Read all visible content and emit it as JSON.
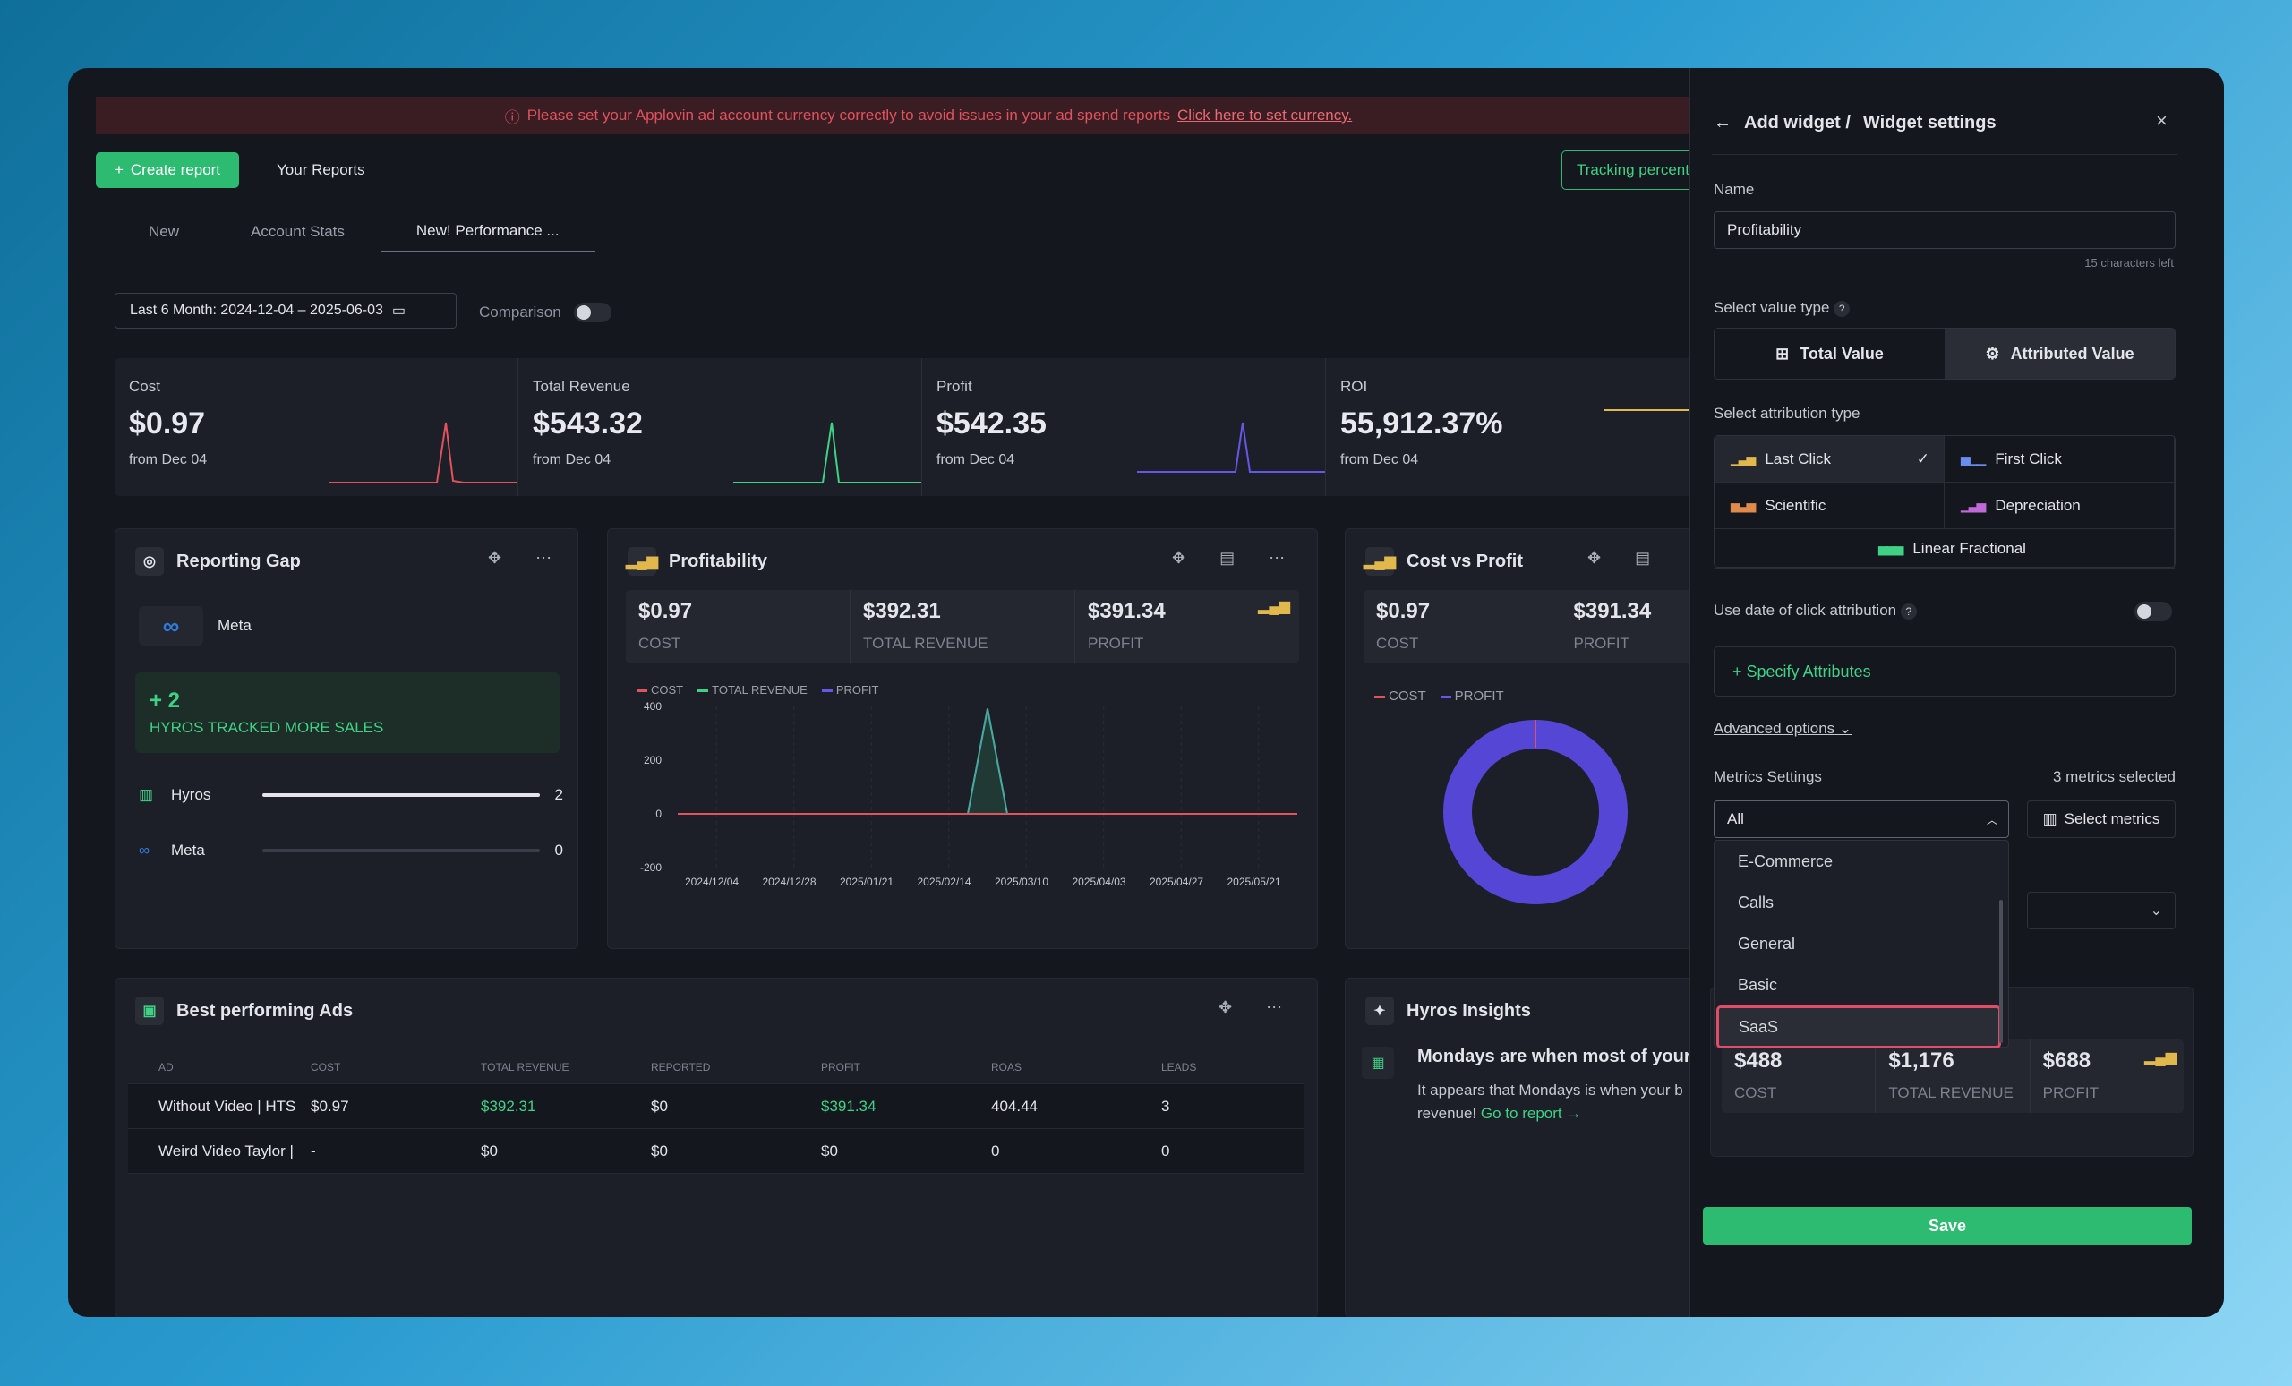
{
  "banner": {
    "message": "Please set your Applovin ad account currency correctly to avoid issues in your ad spend reports",
    "link": "Click here to set currency."
  },
  "toolbar": {
    "create": "Create report",
    "reports": "Your Reports",
    "tracking": "Tracking percentage"
  },
  "tabs": [
    "New",
    "Account Stats",
    "New! Performance ..."
  ],
  "date_range": "Last 6 Month: 2024-12-04 – 2025-06-03",
  "comparison": "Comparison",
  "stats": [
    {
      "label": "Cost",
      "value": "$0.97",
      "from": "from Dec 04",
      "color": "#e0525c"
    },
    {
      "label": "Total Revenue",
      "value": "$543.32",
      "from": "from Dec 04",
      "color": "#3fd285"
    },
    {
      "label": "Profit",
      "value": "$542.35",
      "from": "from Dec 04",
      "color": "#6557e8"
    },
    {
      "label": "ROI",
      "value": "55,912.37%",
      "from": "from Dec 04",
      "color": "#e0b84c"
    }
  ],
  "gap": {
    "title": "Reporting Gap",
    "platform": "Meta",
    "delta": "+ 2",
    "delta_text": "HYROS TRACKED MORE SALES",
    "rows": [
      {
        "name": "Hyros",
        "value": "2",
        "fill": 1.0
      },
      {
        "name": "Meta",
        "value": "0",
        "fill": 0.0
      }
    ]
  },
  "profit": {
    "title": "Profitability",
    "metrics": [
      {
        "v": "$0.97",
        "l": "COST"
      },
      {
        "v": "$392.31",
        "l": "TOTAL REVENUE"
      },
      {
        "v": "$391.34",
        "l": "PROFIT"
      }
    ],
    "legend": [
      "COST",
      "TOTAL REVENUE",
      "PROFIT"
    ]
  },
  "chart_data": {
    "type": "line",
    "x": [
      "2024/12/04",
      "2024/12/28",
      "2025/01/21",
      "2025/02/14",
      "2025/03/10",
      "2025/04/03",
      "2025/04/27",
      "2025/05/21"
    ],
    "yticks": [
      "400",
      "200",
      "0",
      "-200"
    ],
    "ylim": [
      -200,
      400
    ],
    "series": [
      {
        "name": "COST",
        "peak": 0
      },
      {
        "name": "TOTAL REVENUE",
        "peak": 392
      },
      {
        "name": "PROFIT",
        "peak": 391
      }
    ]
  },
  "cvp": {
    "title": "Cost vs Profit",
    "metrics": [
      {
        "v": "$0.97",
        "l": "COST"
      },
      {
        "v": "$391.34",
        "l": "PROFIT"
      }
    ],
    "legend": [
      "COST",
      "PROFIT"
    ]
  },
  "ads": {
    "title": "Best performing Ads",
    "cols": [
      "AD",
      "COST",
      "TOTAL REVENUE",
      "REPORTED",
      "PROFIT",
      "ROAS",
      "LEADS"
    ],
    "rows": [
      [
        "Without Video | HTS",
        "$0.97",
        "$392.31",
        "$0",
        "$391.34",
        "404.44",
        "3"
      ],
      [
        "Weird Video Taylor |",
        "-",
        "$0",
        "$0",
        "$0",
        "0",
        "0"
      ]
    ]
  },
  "insights": {
    "title": "Hyros Insights",
    "headline": "Mondays are when most of your s",
    "body": "It appears that Mondays is when your b",
    "body2": "revenue!",
    "link": "Go to report →"
  },
  "panel": {
    "crumb": "Add widget /",
    "title": "Widget settings",
    "name_label": "Name",
    "name_value": "Profitability",
    "chars_left": "15 characters left",
    "value_type_label": "Select value type",
    "value_types": [
      "Total Value",
      "Attributed Value"
    ],
    "attr_label": "Select attribution type",
    "attr_types": [
      "Last Click",
      "First Click",
      "Scientific",
      "Depreciation",
      "Linear Fractional"
    ],
    "click_date": "Use date of click attribution",
    "specify": "+ Specify Attributes",
    "advanced": "Advanced options",
    "metrics_label": "Metrics Settings",
    "metrics_count": "3 metrics selected",
    "metrics_select": "All",
    "select_metrics": "Select metrics",
    "menu": [
      "E-Commerce",
      "Calls",
      "General",
      "Basic",
      "SaaS"
    ],
    "preview": [
      {
        "v": "$488",
        "l": "COST"
      },
      {
        "v": "$1,176",
        "l": "TOTAL REVENUE"
      },
      {
        "v": "$688",
        "l": "PROFIT"
      }
    ],
    "save": "Save"
  }
}
